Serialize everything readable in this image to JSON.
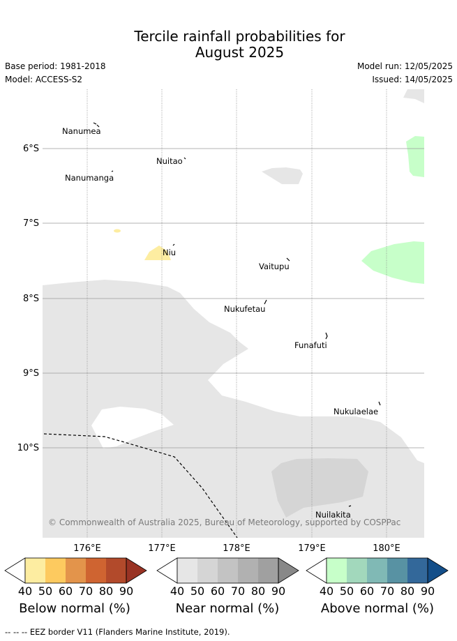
{
  "header": {
    "title_line1": "Tercile rainfall probabilities for",
    "title_line2": "August 2025",
    "base_period": "Base period: 1981-2018",
    "model": "Model: ACCESS-S2",
    "model_run": "Model run: 12/05/2025",
    "issued": "Issued: 14/05/2025"
  },
  "map": {
    "lat_labels": [
      "6°S",
      "7°S",
      "8°S",
      "9°S",
      "10°S"
    ],
    "lon_labels": [
      "176°E",
      "177°E",
      "178°E",
      "179°E",
      "180°E"
    ],
    "islands": {
      "nanumea": "Nanumea",
      "nuitao": "Nuitao",
      "nanumanga": "Nanumanga",
      "niu": "Niu",
      "vaitupu": "Vaitupu",
      "nukufetau": "Nukufetau",
      "funafuti": "Funafuti",
      "nukulaelae": "Nukulaelae",
      "nuilakita": "Nuilakita"
    },
    "copyright": "© Commonwealth of Australia 2025, Bureau of Meteorology, supported by COSPPac"
  },
  "colorbars": [
    {
      "label": "Below normal (%)",
      "ticks": [
        "40",
        "50",
        "60",
        "70",
        "80",
        "90"
      ],
      "colors": [
        "#fdeda1",
        "#fdca5f",
        "#e3944b",
        "#cf6431",
        "#b24a2b",
        "#993324"
      ]
    },
    {
      "label": "Near normal (%)",
      "ticks": [
        "40",
        "50",
        "60",
        "70",
        "80",
        "90"
      ],
      "colors": [
        "#e6e6e6",
        "#d5d5d5",
        "#c3c3c3",
        "#b1b1b1",
        "#a0a0a0",
        "#888888"
      ]
    },
    {
      "label": "Above normal (%)",
      "ticks": [
        "40",
        "50",
        "60",
        "70",
        "80",
        "90"
      ],
      "colors": [
        "#c7ffc9",
        "#a2d8bc",
        "#80b9b5",
        "#5892a3",
        "#33689a",
        "#134e89"
      ]
    }
  ],
  "footer": {
    "eez_note": "-- -- -- EEZ border V11 (Flanders Marine Institute, 2019)."
  }
}
